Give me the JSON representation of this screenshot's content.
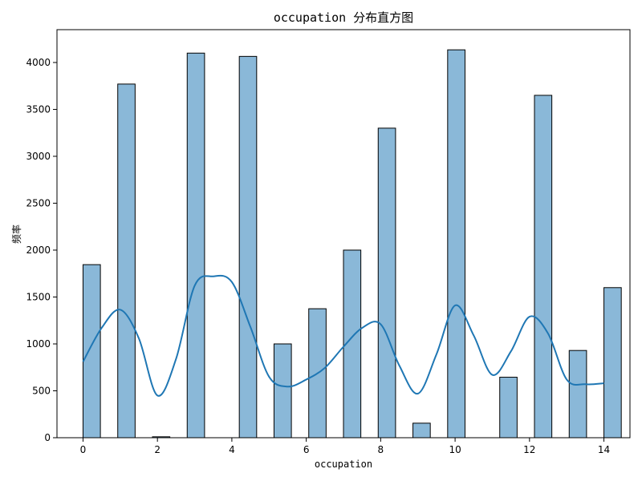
{
  "chart_data": {
    "type": "bar",
    "title": "occupation 分布直方图",
    "xlabel": "occupation",
    "ylabel": "频率",
    "xlim": [
      -0.7,
      14.7
    ],
    "ylim": [
      0,
      4350
    ],
    "xticks": [
      0,
      2,
      4,
      6,
      8,
      10,
      12,
      14
    ],
    "yticks": [
      0,
      500,
      1000,
      1500,
      2000,
      2500,
      3000,
      3500,
      4000
    ],
    "grid": false,
    "legend": "none",
    "bar_color": "#8ab8d8",
    "bar_edge_color": "#000000",
    "kde_color": "#1f77b4",
    "bars": [
      {
        "x_start": 0.0,
        "x_end": 0.4667,
        "value": 1845
      },
      {
        "x_start": 0.9333,
        "x_end": 1.4,
        "value": 3770
      },
      {
        "x_start": 1.8667,
        "x_end": 2.3333,
        "value": 10
      },
      {
        "x_start": 2.8,
        "x_end": 3.2667,
        "value": 4100
      },
      {
        "x_start": 4.2,
        "x_end": 4.6667,
        "value": 4065
      },
      {
        "x_start": 5.1333,
        "x_end": 5.6,
        "value": 1000
      },
      {
        "x_start": 6.0667,
        "x_end": 6.5333,
        "value": 1375
      },
      {
        "x_start": 7.0,
        "x_end": 7.4667,
        "value": 2000
      },
      {
        "x_start": 7.9333,
        "x_end": 8.4,
        "value": 3300
      },
      {
        "x_start": 8.8667,
        "x_end": 9.3333,
        "value": 155
      },
      {
        "x_start": 9.8,
        "x_end": 10.2667,
        "value": 4135
      },
      {
        "x_start": 11.2,
        "x_end": 11.6667,
        "value": 645
      },
      {
        "x_start": 12.1333,
        "x_end": 12.6,
        "value": 3650
      },
      {
        "x_start": 13.0667,
        "x_end": 13.5333,
        "value": 930
      },
      {
        "x_start": 14.0,
        "x_end": 14.4667,
        "value": 1600
      }
    ],
    "kde": {
      "x": [
        0,
        0.5,
        1,
        1.5,
        2,
        2.5,
        3,
        3.5,
        4,
        4.5,
        5,
        5.5,
        6,
        6.5,
        7,
        7.5,
        8,
        8.5,
        9,
        9.5,
        10,
        10.5,
        11,
        11.5,
        12,
        12.5,
        13,
        13.5,
        14
      ],
      "y": [
        810,
        1170,
        1365,
        1060,
        450,
        840,
        1620,
        1720,
        1660,
        1180,
        650,
        545,
        620,
        745,
        970,
        1170,
        1210,
        770,
        470,
        890,
        1410,
        1090,
        670,
        920,
        1290,
        1110,
        620,
        570,
        580
      ]
    }
  }
}
